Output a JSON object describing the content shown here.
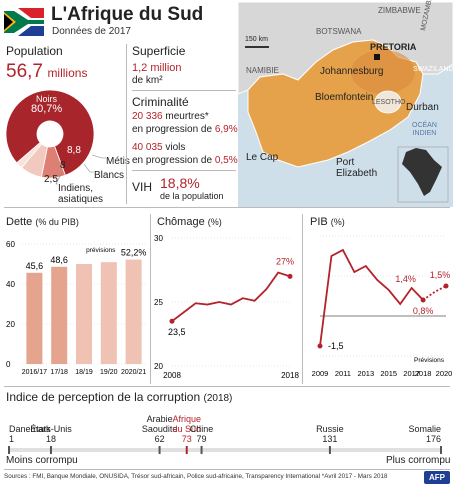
{
  "header": {
    "title": "L'Afrique du Sud",
    "subtitle": "Données de 2017"
  },
  "population": {
    "label": "Population",
    "value": "56,7",
    "unit": "millions",
    "slices": [
      {
        "name": "Noirs",
        "value": "80,7%",
        "num": 80.7,
        "color": "#a8252b"
      },
      {
        "name": "Métis",
        "value": "8,8",
        "num": 8.8,
        "color": "#dd7f72"
      },
      {
        "name": "Blancs",
        "value": "8",
        "num": 8,
        "color": "#f1c9bf"
      },
      {
        "name": "Indiens, asiatiques",
        "value": "2,5",
        "num": 2.5,
        "color": "#f7e3dc"
      }
    ]
  },
  "stats": {
    "superficie": {
      "label": "Superficie",
      "value": "1,2 million",
      "unit": "de km²"
    },
    "criminalite": {
      "label": "Criminalité",
      "line1_value": "20 336",
      "line1_text": "meurtres*",
      "line2_text": "en progression de",
      "line2_value": "6,9%",
      "line3_value": "40 035",
      "line3_text": "viols",
      "line4_text": "en progression de",
      "line4_value": "0,5%"
    },
    "vih": {
      "label": "VIH",
      "value": "18,8%",
      "unit": "de la population"
    }
  },
  "map": {
    "countries": {
      "namibie": "NAMIBIE",
      "botswana": "BOTSWANA",
      "zimbabwe": "ZIMBABWE",
      "mozambique": "MOZAMBIQUE",
      "swaziland": "SWAZILAND",
      "lesotho": "LESOTHO"
    },
    "cities": {
      "pretoria": "PRETORIA",
      "johannesburg": "Johannesburg",
      "bloemfontein": "Bloemfontein",
      "durban": "Durban",
      "lecap": "Le Cap",
      "portelizabeth_1": "Port",
      "portelizabeth_2": "Elizabeth"
    },
    "ocean_1": "OCÉAN",
    "ocean_2": "INDIEN",
    "scale": "150 km",
    "colors": {
      "sea": "#cfdfea",
      "land": "#d7d7d7",
      "sa": "#e6a24b"
    }
  },
  "chart_data": [
    {
      "type": "bar",
      "title": "Dette",
      "unit_label": "(% du PIB)",
      "categories": [
        "2016/17",
        "17/18",
        "18/19",
        "19/20",
        "2020/21"
      ],
      "values": [
        45.6,
        48.6,
        50,
        50.9,
        52.2
      ],
      "labels": [
        "45,6",
        "48,6",
        "",
        "",
        "52,2%"
      ],
      "forecast_label": "prévisions",
      "yticks": [
        "60",
        "40",
        "20",
        "0"
      ],
      "ylim": [
        0,
        60
      ],
      "colors": {
        "actual": "#e4a48e",
        "forecast": "#efc2b3"
      }
    },
    {
      "type": "line",
      "title": "Chômage",
      "unit_label": "(%)",
      "x": [
        2008,
        2009,
        2010,
        2011,
        2012,
        2013,
        2014,
        2015,
        2016,
        2017,
        2018
      ],
      "values": [
        23.5,
        24.2,
        24.9,
        24.8,
        25.0,
        24.8,
        25.3,
        25.1,
        26.0,
        27.3,
        27.0
      ],
      "labels": {
        "first": "23,5",
        "last": "27%"
      },
      "xtick_labels": [
        "2008",
        "2018"
      ],
      "yticks": [
        "30",
        "25",
        "20"
      ],
      "ylim": [
        20,
        30
      ],
      "color": "#b3232b"
    },
    {
      "type": "line",
      "title": "PIB",
      "unit_label": "(%)",
      "x": [
        2009,
        2010,
        2011,
        2012,
        2013,
        2014,
        2015,
        2016,
        2017,
        2018,
        2019,
        2020
      ],
      "values": [
        -1.5,
        3.0,
        3.3,
        2.2,
        2.5,
        1.8,
        1.3,
        0.6,
        1.4,
        0.8,
        1.2,
        1.5
      ],
      "forecast_from": 2018,
      "labels": {
        "min": "-1,5",
        "y2017": "1,4%",
        "y2018": "0,8%",
        "y2020": "1,5%"
      },
      "xtick_labels": [
        "2009",
        "2011",
        "2013",
        "2015",
        "2017",
        "2018",
        "2020"
      ],
      "forecast_label": "Prévisions",
      "ylim": [
        -2,
        4
      ],
      "color": "#b3232b"
    },
    {
      "type": "table",
      "title": "Indice de perception de la corruption",
      "year": "(2018)",
      "countries": [
        {
          "name": "Danemark",
          "rank": 1
        },
        {
          "name": "États-Unis",
          "rank": 18
        },
        {
          "name": "Arabie Saoudite",
          "rank": 62
        },
        {
          "name": "Afrique du Sud",
          "rank": 73
        },
        {
          "name": "Chine",
          "rank": 79
        },
        {
          "name": "Russie",
          "rank": 131
        },
        {
          "name": "Somalie",
          "rank": 176
        }
      ],
      "rank_labels": [
        "1",
        "18",
        "62",
        "73",
        "79",
        "131",
        "176"
      ],
      "left_label": "Moins corrompu",
      "right_label": "Plus corrompu"
    }
  ],
  "footer": {
    "sources": "Sources : FMI, Banque Mondiale, ONUSIDA, Trésor sud-africain, Police sud-africaine, Transparency International   *Avril 2017 - Mars 2018",
    "logo": "AFP"
  }
}
